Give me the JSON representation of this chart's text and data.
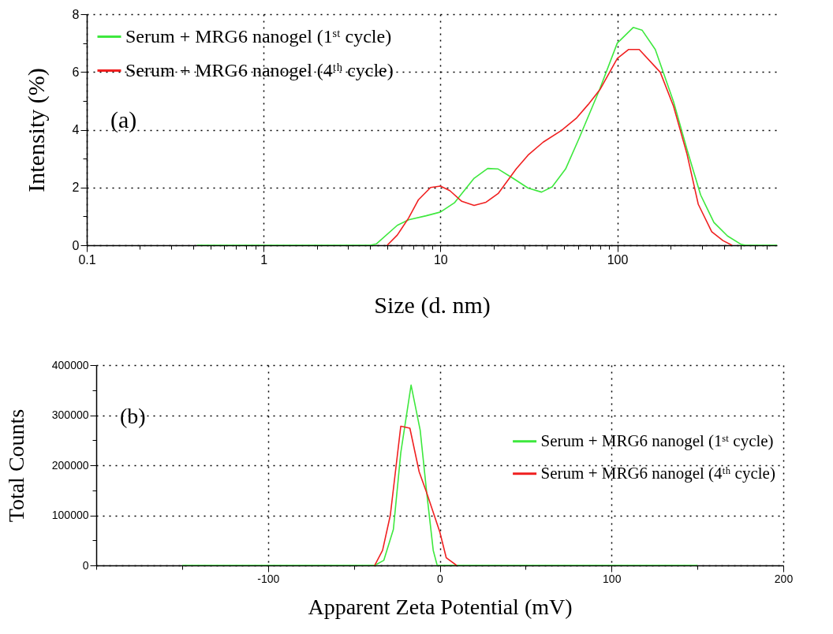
{
  "chart_data": [
    {
      "type": "line",
      "xlabel": "Size (d. nm)",
      "ylabel": "Intensity (%)",
      "log": "x",
      "grid": true,
      "legend": "top left",
      "marker": "none",
      "line_style": "solid",
      "annotations": [
        "(a)"
      ],
      "xlim": [
        0.1,
        800
      ],
      "ylim": [
        0,
        8
      ],
      "xticks": [
        0.1,
        {
          "value": 0.2,
          "label": null
        },
        {
          "value": 0.3,
          "label": null
        },
        {
          "value": 0.4,
          "label": null
        },
        {
          "value": 0.5,
          "label": null
        },
        {
          "value": 0.6,
          "label": null
        },
        {
          "value": 0.7,
          "label": null
        },
        {
          "value": 0.8,
          "label": null
        },
        {
          "value": 0.9,
          "label": null
        },
        1,
        {
          "value": 2,
          "label": null
        },
        {
          "value": 3,
          "label": null
        },
        {
          "value": 4,
          "label": null
        },
        {
          "value": 5,
          "label": null
        },
        {
          "value": 6,
          "label": null
        },
        {
          "value": 7,
          "label": null
        },
        {
          "value": 8,
          "label": null
        },
        {
          "value": 9,
          "label": null
        },
        10,
        {
          "value": 20,
          "label": null
        },
        {
          "value": 30,
          "label": null
        },
        {
          "value": 40,
          "label": null
        },
        {
          "value": 50,
          "label": null
        },
        {
          "value": 60,
          "label": null
        },
        {
          "value": 70,
          "label": null
        },
        {
          "value": 80,
          "label": null
        },
        {
          "value": 90,
          "label": null
        },
        100,
        {
          "value": 200,
          "label": null
        },
        {
          "value": 300,
          "label": null
        },
        {
          "value": 400,
          "label": null
        },
        {
          "value": 500,
          "label": null
        },
        {
          "value": 600,
          "label": null
        },
        {
          "value": 700,
          "label": null
        }
      ],
      "yticks": [
        0,
        {
          "value": 1,
          "label": null
        },
        2,
        {
          "value": 3,
          "label": null
        },
        4,
        {
          "value": 5,
          "label": null
        },
        6,
        {
          "value": 7,
          "label": null
        },
        8
      ],
      "series": [
        {
          "name": "Serum + MRG6 nanogel (1ˢᵗ cycle)",
          "color": "#3ee83e",
          "x": [
            0.42,
            4.0,
            4.35,
            5.7,
            6.6,
            8.3,
            10,
            12,
            15.5,
            18.5,
            21.2,
            25.7,
            31.3,
            37.3,
            42.8,
            51,
            60.8,
            79,
            100,
            123,
            138,
            164,
            208,
            248,
            296,
            352,
            420,
            501,
            531,
            800
          ],
          "values": [
            0,
            0,
            0.05,
            0.69,
            0.88,
            1.02,
            1.15,
            1.47,
            2.32,
            2.66,
            2.64,
            2.32,
            1.98,
            1.84,
            2.02,
            2.64,
            3.7,
            5.36,
            7.0,
            7.54,
            7.45,
            6.78,
            4.97,
            3.31,
            1.74,
            0.79,
            0.32,
            0.03,
            0,
            0
          ]
        },
        {
          "name": "Serum + MRG6 nanogel (4ᵗʰ cycle)",
          "color": "#f02020",
          "x": [
            5.0,
            5.7,
            6.6,
            7.5,
            8.8,
            10,
            11.3,
            13.2,
            15.5,
            18.1,
            21.2,
            26.8,
            31.3,
            38.1,
            48.2,
            58.5,
            68.4,
            80,
            100,
            116,
            133,
            175,
            208,
            248,
            287,
            342,
            396,
            445
          ],
          "values": [
            0,
            0.35,
            0.94,
            1.57,
            2.0,
            2.05,
            1.89,
            1.52,
            1.38,
            1.49,
            1.79,
            2.64,
            3.12,
            3.57,
            3.97,
            4.39,
            4.87,
            5.4,
            6.47,
            6.78,
            6.78,
            5.99,
            4.81,
            3.15,
            1.42,
            0.47,
            0.16,
            0
          ]
        }
      ]
    },
    {
      "type": "line",
      "xlabel": "Apparent Zeta Potential (mV)",
      "ylabel": "Total Counts",
      "grid": true,
      "legend": "right",
      "marker": "none",
      "line_style": "solid",
      "annotations": [
        "(b)"
      ],
      "xlim": [
        -200,
        200
      ],
      "ylim": [
        0,
        400000
      ],
      "xticks": [
        {
          "value": -200,
          "label": null
        },
        {
          "value": -150,
          "label": null
        },
        -100,
        {
          "value": -50,
          "label": null
        },
        0,
        {
          "value": 50,
          "label": null
        },
        100,
        {
          "value": 150,
          "label": null
        },
        200
      ],
      "yticks": [
        0,
        {
          "value": 50000,
          "label": null
        },
        100000,
        {
          "value": 150000,
          "label": null
        },
        200000,
        {
          "value": 250000,
          "label": null
        },
        300000,
        {
          "value": 350000,
          "label": null
        },
        400000
      ],
      "series": [
        {
          "name": "Serum + MRG6 nanogel (1ˢᵗ cycle)",
          "color": "#3ee83e",
          "x": [
            -150,
            -37.9,
            -32.6,
            -27,
            -22.7,
            -16.7,
            -11.4,
            -7.6,
            -3.8,
            -1.5,
            150
          ],
          "values": [
            0,
            0,
            10000,
            72000,
            225000,
            360000,
            270000,
            145000,
            30000,
            0,
            0
          ]
        },
        {
          "name": "Serum + MRG6 nanogel (4ᵗʰ cycle)",
          "color": "#f02020",
          "x": [
            -37.9,
            -33.3,
            -28.8,
            -22.7,
            -17.4,
            -12,
            -7.6,
            0,
            3.8,
            9.8
          ],
          "values": [
            0,
            30000,
            100000,
            278000,
            274000,
            187000,
            145000,
            67000,
            15000,
            0
          ]
        }
      ]
    }
  ]
}
